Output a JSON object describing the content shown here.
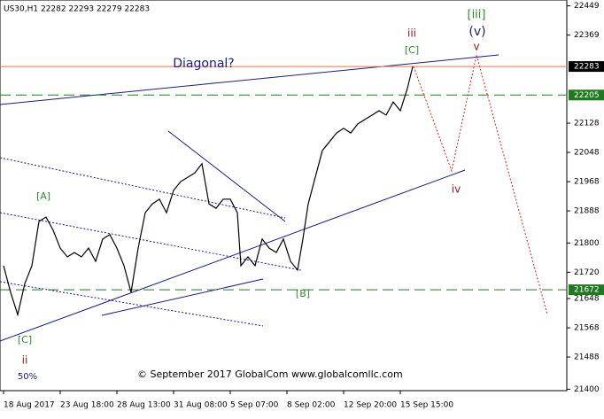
{
  "chart_data": {
    "type": "line",
    "header": "US30,H1  22282 22293 22279 22283",
    "footer": "© September 2017 GlobalCom www.globalcomllc.com",
    "x": [
      1,
      3,
      5,
      7,
      9,
      11,
      13,
      15,
      17,
      19,
      21,
      23,
      25,
      27,
      29,
      31,
      33,
      35,
      37,
      39,
      41,
      43,
      45,
      47,
      49,
      51,
      53,
      55,
      57,
      59,
      61,
      63,
      65,
      67,
      68,
      70,
      72,
      74,
      76,
      78,
      80,
      82,
      84,
      85.5,
      87,
      89,
      91,
      93,
      95,
      97,
      99,
      101,
      103,
      105,
      107,
      109,
      111,
      113,
      115,
      116.5
    ],
    "series": [
      {
        "name": "US30,H1",
        "color": "#000000",
        "values": [
          21738,
          21665,
          21604,
          21689,
          21738,
          21859,
          21871,
          21835,
          21786,
          21762,
          21774,
          21762,
          21786,
          21750,
          21811,
          21823,
          21786,
          21738,
          21665,
          21786,
          21883,
          21907,
          21920,
          21883,
          21944,
          21968,
          21980,
          21992,
          22017,
          21907,
          21895,
          21920,
          21920,
          21883,
          21738,
          21762,
          21738,
          21811,
          21786,
          21774,
          21811,
          21750,
          21726,
          21811,
          21907,
          21980,
          22053,
          22077,
          22101,
          22114,
          22101,
          22126,
          22138,
          22150,
          22162,
          22150,
          22186,
          22162,
          22223,
          22283
        ]
      }
    ],
    "xlim": [
      0,
      160
    ],
    "xticks": [
      {
        "value": 1,
        "label": "18 Aug 2017"
      },
      {
        "value": 17,
        "label": "23 Aug 18:00"
      },
      {
        "value": 33,
        "label": "28 Aug 13:00"
      },
      {
        "value": 49,
        "label": "31 Aug 08:00"
      },
      {
        "value": 65,
        "label": "5 Sep 07:00"
      },
      {
        "value": 81,
        "label": "8 Sep 02:00"
      },
      {
        "value": 97,
        "label": "12 Sep 20:00"
      },
      {
        "value": 113,
        "label": "15 Sep 15:00"
      }
    ],
    "ylim": [
      21396,
      22465
    ],
    "yticks": [
      22449,
      22369,
      22128,
      22048,
      21968,
      21888,
      21800,
      21720,
      21648,
      21568,
      21488,
      21400
    ],
    "levels": [
      {
        "value": 22283,
        "color": "#e8734a",
        "style": "solid"
      },
      {
        "value": 22205,
        "color": "#1e7a1e",
        "style": "dashed"
      },
      {
        "value": 21672,
        "color": "#1e7a1e",
        "style": "dashed"
      }
    ],
    "annotations": [
      {
        "text": "[iii]",
        "color": "#2e8b2e"
      },
      {
        "text": "(v)",
        "color": "#1a1a8c"
      },
      {
        "text": "iii",
        "color": "#8b1a1a"
      },
      {
        "text": "[C]",
        "color": "#2e8b2e"
      },
      {
        "text": "v",
        "color": "#8b1a1a"
      },
      {
        "text": "Diagonal?",
        "color": "#1a1a8c"
      },
      {
        "text": "iv",
        "color": "#8b1a1a"
      },
      {
        "text": "[A]",
        "color": "#2e8b2e"
      },
      {
        "text": "[B]",
        "color": "#2e8b2e"
      },
      {
        "text": "[C]",
        "color": "#2e8b2e"
      },
      {
        "text": "ii",
        "color": "#8b1a1a"
      },
      {
        "text": "50%",
        "color": "#1a1a8c"
      }
    ]
  }
}
